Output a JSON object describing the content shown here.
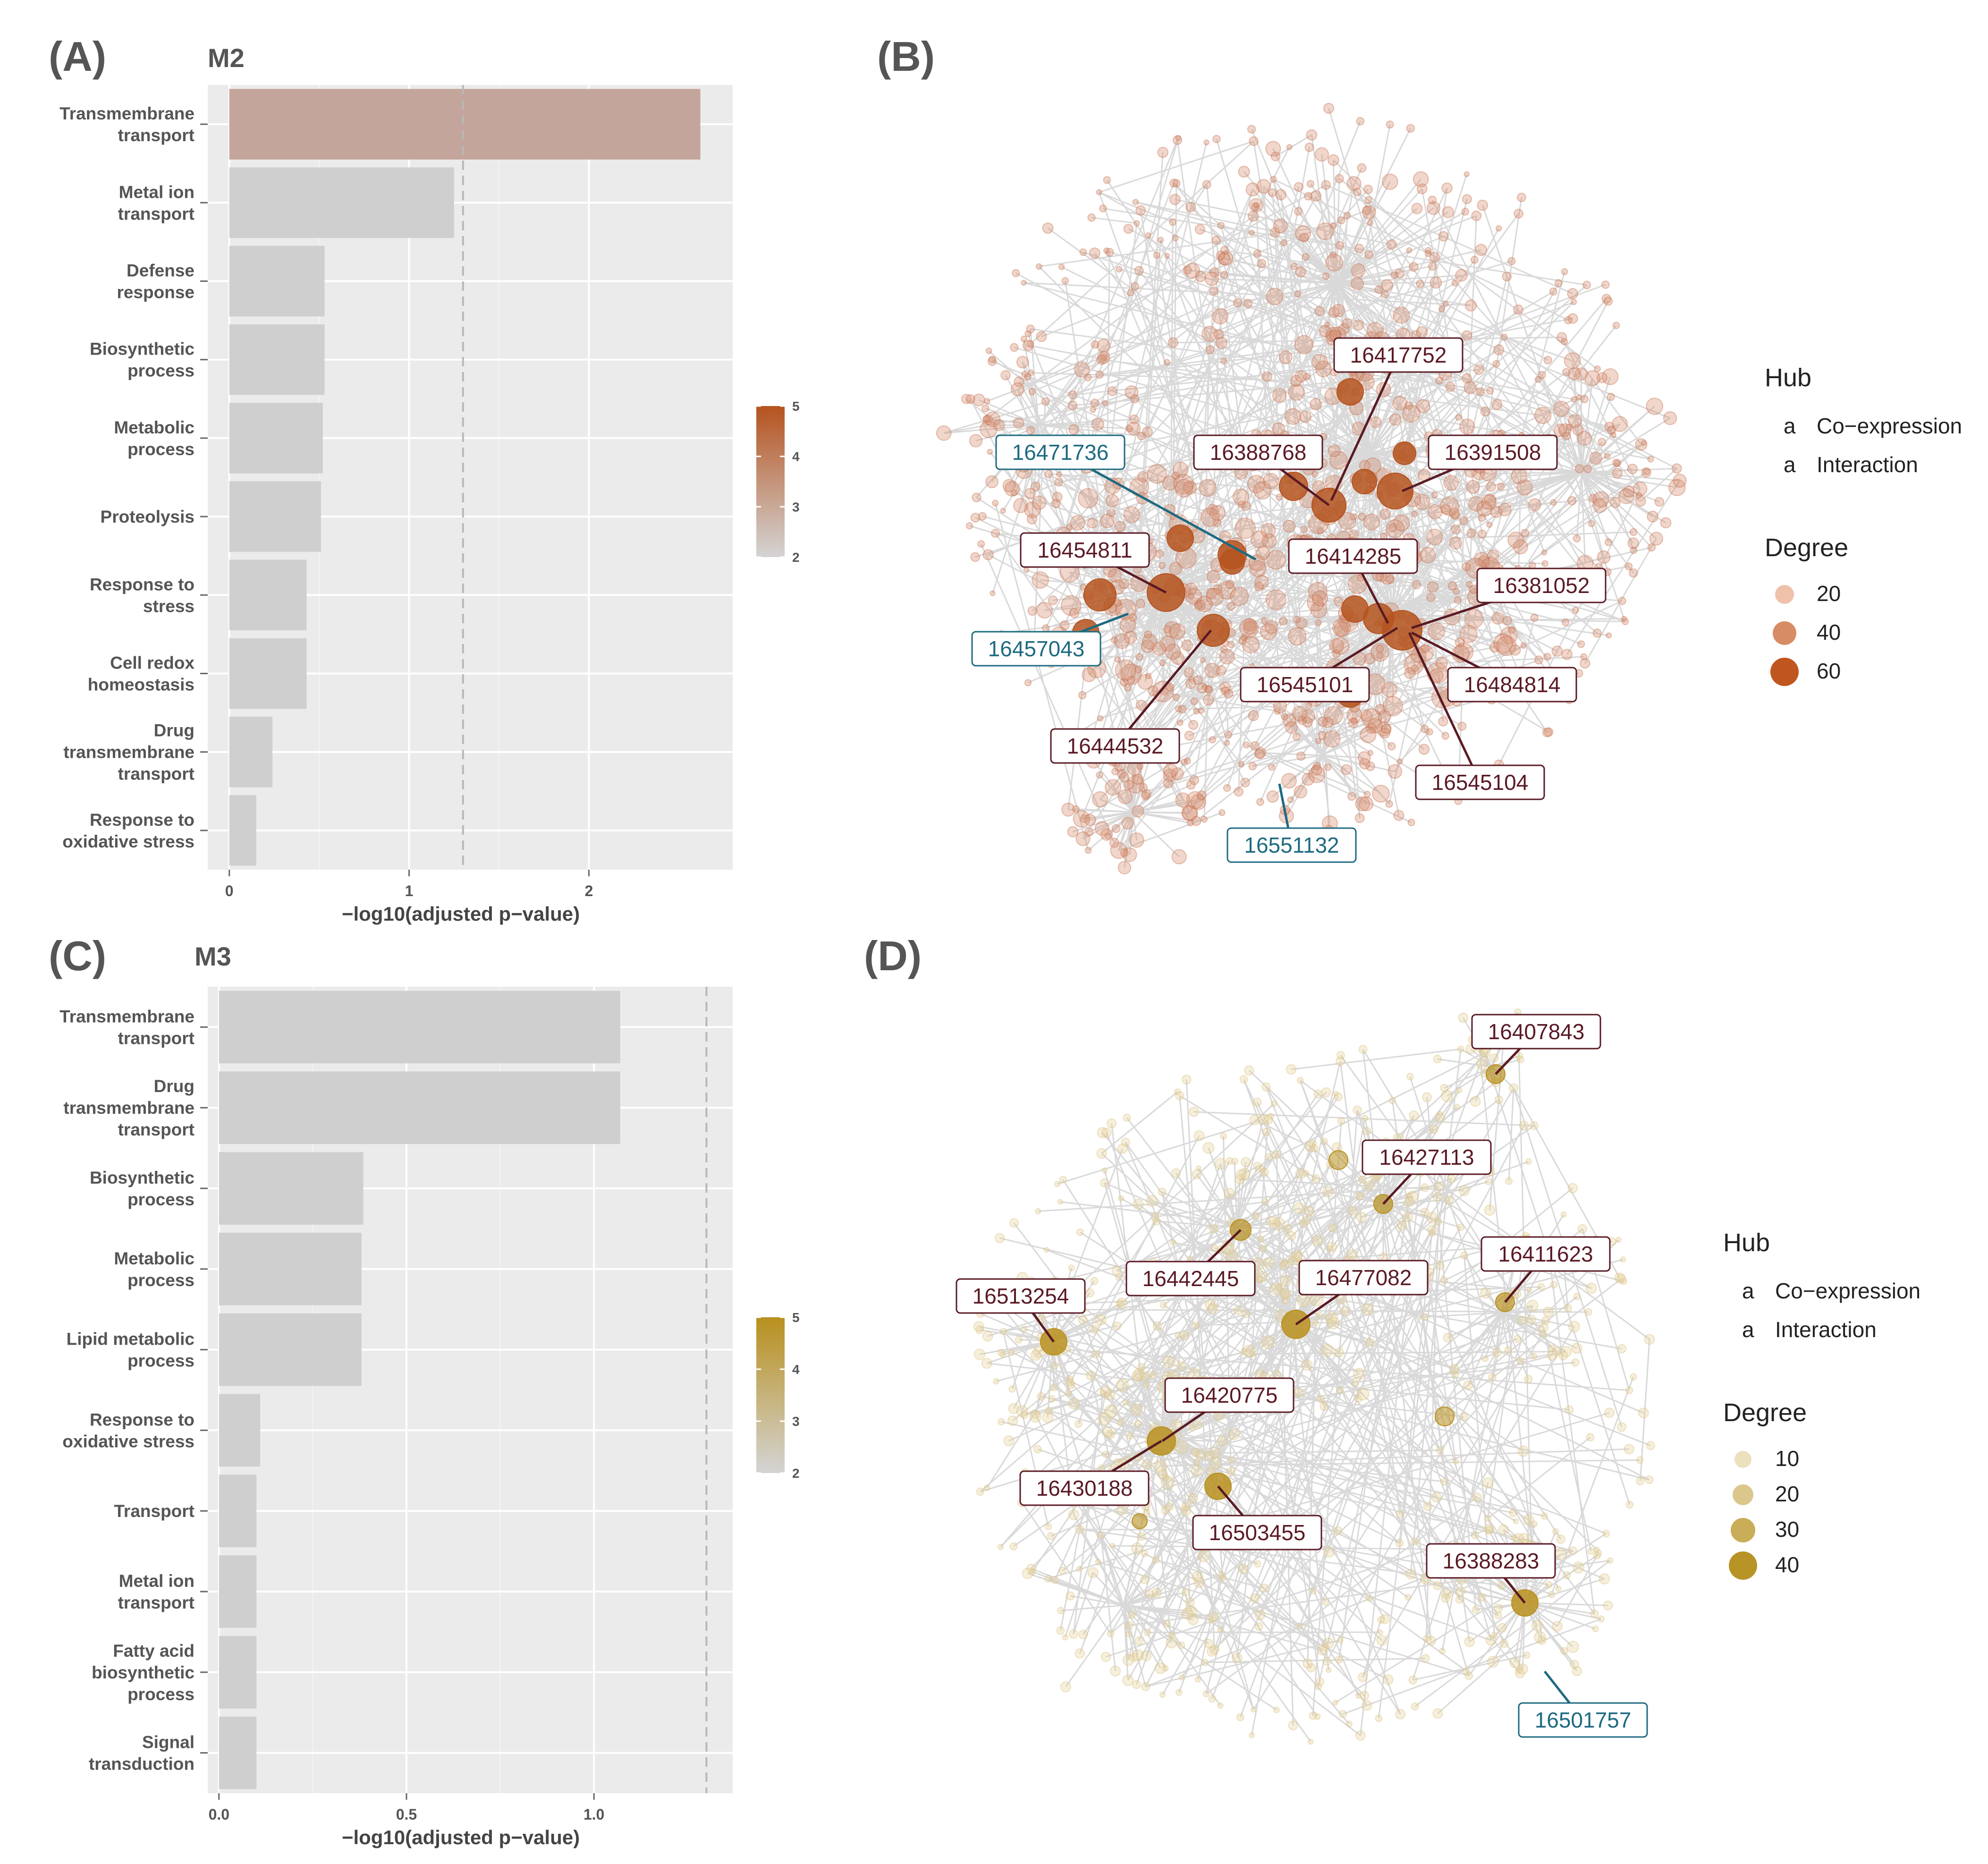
{
  "colors": {
    "panel_bg": "#ebebeb",
    "grid": "#ffffff",
    "bar_grey": "#cfcfcf",
    "m2_top": "#c4a59b",
    "m2_high": "#b5531f",
    "m2_low": "#d4d4d4",
    "m3_high": "#b8901f",
    "m3_low": "#d4d4d4",
    "edge": "#d9d9d9",
    "coexpression": "#1e6a80",
    "interaction": "#5a1a24"
  },
  "chart_data": [
    {
      "panel": "(A)",
      "module": "M2",
      "type": "bar",
      "orientation": "horizontal",
      "categories": [
        "Transmembrane\ntransport",
        "Metal ion\ntransport",
        "Defense\nresponse",
        "Biosynthetic\nprocess",
        "Metabolic\nprocess",
        "Proteolysis",
        "Response to\nstress",
        "Cell redox\nhomeostasis",
        "Drug\ntransmembrane\ntransport",
        "Response to\noxidative stress"
      ],
      "values": [
        2.62,
        1.25,
        0.53,
        0.53,
        0.52,
        0.51,
        0.43,
        0.43,
        0.24,
        0.15
      ],
      "fill_scale_values": [
        2.6,
        2,
        2,
        2,
        2,
        2,
        2,
        2,
        2,
        2
      ],
      "threshold": 1.3,
      "xlim": [
        -0.12,
        2.8
      ],
      "xticks": [
        0,
        1,
        2
      ],
      "xlabel": "−log10(adjusted p−value)",
      "colorbar": {
        "min": 2,
        "max": 5,
        "ticks": [
          2,
          3,
          4,
          5
        ]
      }
    },
    {
      "panel": "(C)",
      "module": "M3",
      "type": "bar",
      "orientation": "horizontal",
      "categories": [
        "Transmembrane\ntransport",
        "Drug\ntransmembrane\ntransport",
        "Biosynthetic\nprocess",
        "Metabolic\nprocess",
        "Lipid metabolic\nprocess",
        "Response to\noxidative stress",
        "Transport",
        "Metal ion\ntransport",
        "Fatty acid\nbiosynthetic\nprocess",
        "Signal\ntransduction"
      ],
      "values": [
        1.07,
        1.07,
        0.385,
        0.38,
        0.38,
        0.11,
        0.1,
        0.1,
        0.1,
        0.1
      ],
      "fill_scale_values": [
        2,
        2,
        2,
        2,
        2,
        2,
        2,
        2,
        2,
        2
      ],
      "threshold": 1.3,
      "xlim": [
        -0.03,
        1.37
      ],
      "xticks": [
        0.0,
        0.5,
        1.0
      ],
      "xtick_labels": [
        "0.0",
        "0.5",
        "1.0"
      ],
      "xlabel": "−log10(adjusted p−value)",
      "colorbar": {
        "min": 2,
        "max": 5,
        "ticks": [
          2,
          3,
          4,
          5
        ]
      }
    }
  ],
  "networks": [
    {
      "panel": "(B)",
      "legend": {
        "hub_title": "Hub",
        "hub_glyph": "a",
        "hub_items": [
          "Co−expression",
          "Interaction"
        ],
        "degree_title": "Degree",
        "degree_items": [
          20,
          40,
          60
        ]
      },
      "hubs": [
        {
          "id": "16417752",
          "type": "Interaction"
        },
        {
          "id": "16471736",
          "type": "Co-expression"
        },
        {
          "id": "16388768",
          "type": "Interaction"
        },
        {
          "id": "16391508",
          "type": "Interaction"
        },
        {
          "id": "16454811",
          "type": "Interaction"
        },
        {
          "id": "16414285",
          "type": "Interaction"
        },
        {
          "id": "16381052",
          "type": "Interaction"
        },
        {
          "id": "16457043",
          "type": "Co-expression"
        },
        {
          "id": "16545101",
          "type": "Interaction"
        },
        {
          "id": "16484814",
          "type": "Interaction"
        },
        {
          "id": "16444532",
          "type": "Interaction"
        },
        {
          "id": "16545104",
          "type": "Interaction"
        },
        {
          "id": "16551132",
          "type": "Co-expression"
        }
      ]
    },
    {
      "panel": "(D)",
      "legend": {
        "hub_title": "Hub",
        "hub_glyph": "a",
        "hub_items": [
          "Co−expression",
          "Interaction"
        ],
        "degree_title": "Degree",
        "degree_items": [
          10,
          20,
          30,
          40
        ]
      },
      "hubs": [
        {
          "id": "16407843",
          "type": "Interaction"
        },
        {
          "id": "16427113",
          "type": "Interaction"
        },
        {
          "id": "16442445",
          "type": "Interaction"
        },
        {
          "id": "16477082",
          "type": "Interaction"
        },
        {
          "id": "16411623",
          "type": "Interaction"
        },
        {
          "id": "16513254",
          "type": "Interaction"
        },
        {
          "id": "16420775",
          "type": "Interaction"
        },
        {
          "id": "16430188",
          "type": "Interaction"
        },
        {
          "id": "16503455",
          "type": "Interaction"
        },
        {
          "id": "16388283",
          "type": "Interaction"
        },
        {
          "id": "16501757",
          "type": "Co-expression"
        }
      ]
    }
  ]
}
